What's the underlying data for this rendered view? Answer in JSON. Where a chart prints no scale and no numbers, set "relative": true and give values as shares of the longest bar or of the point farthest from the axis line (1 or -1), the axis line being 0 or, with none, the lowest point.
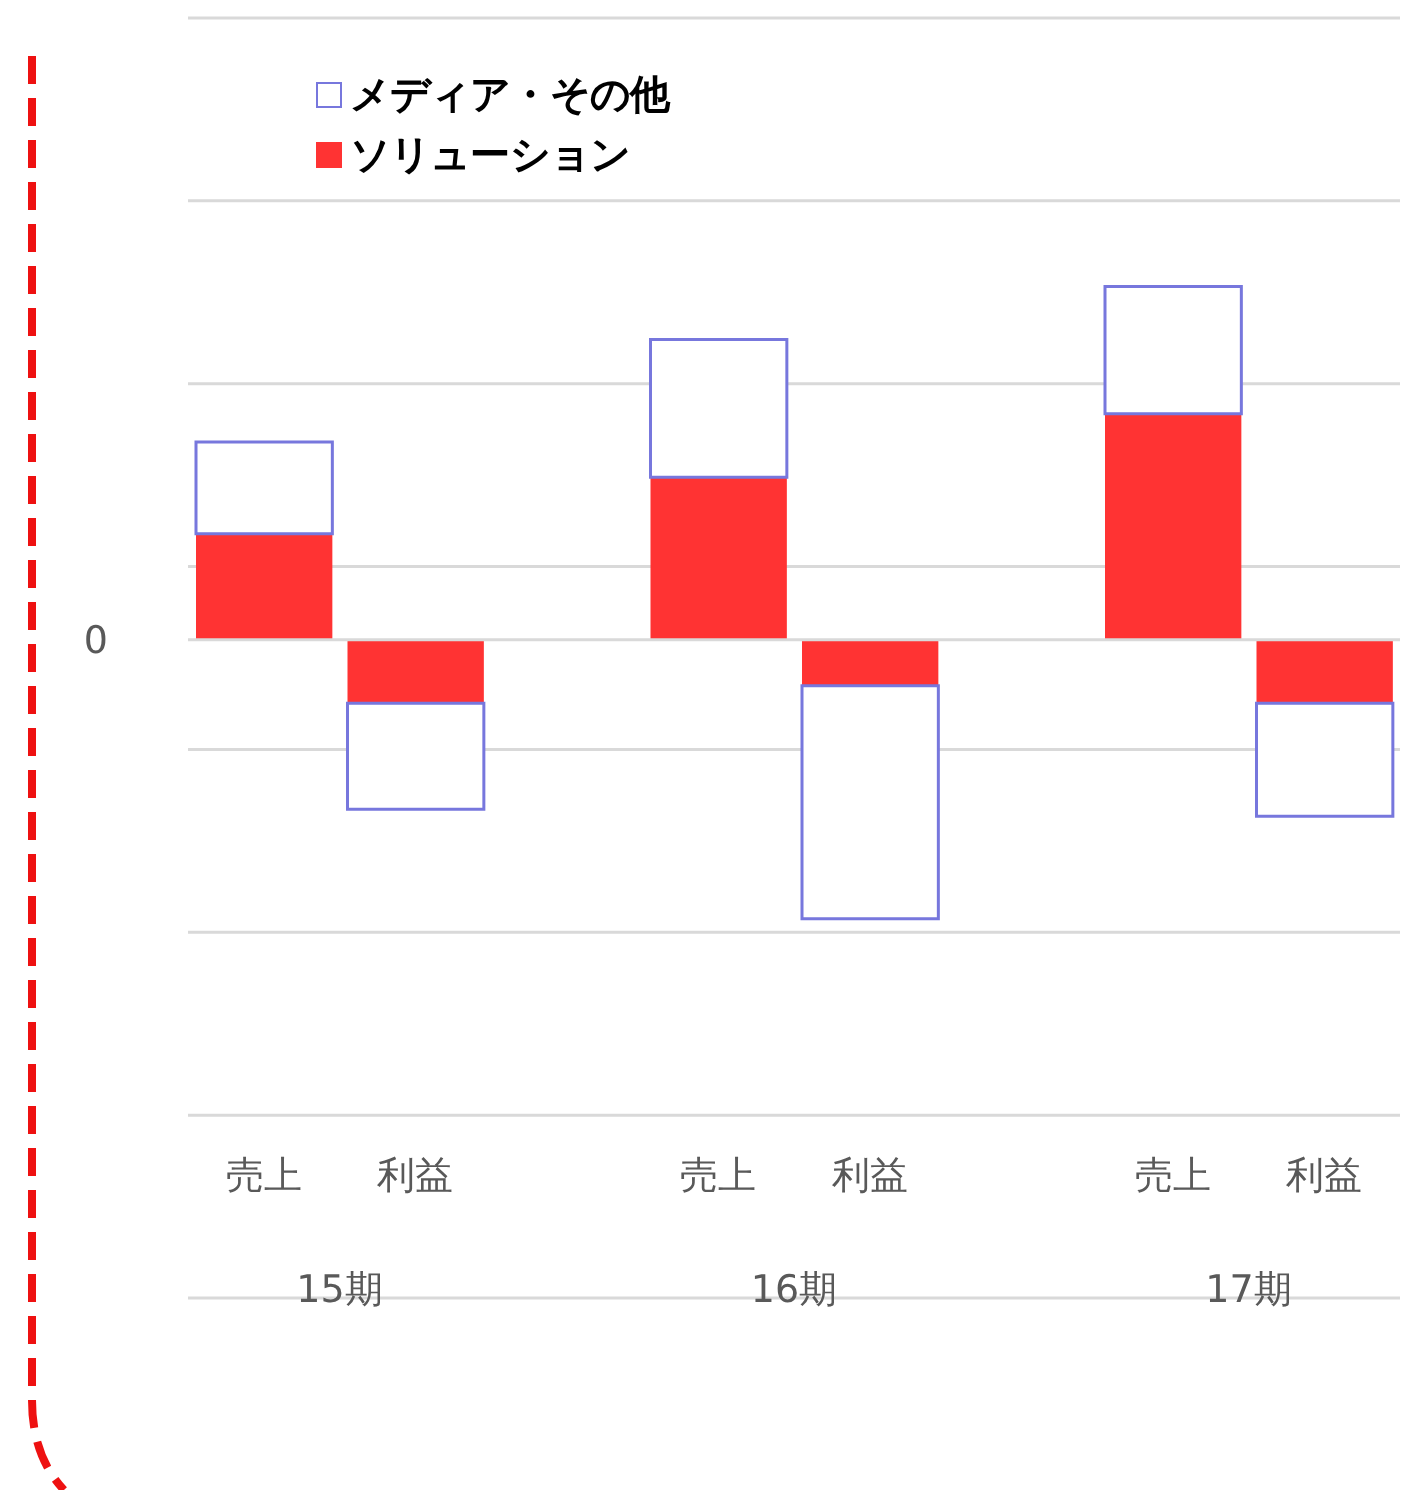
{
  "chart_data": {
    "type": "bar",
    "relative": true,
    "stacked": true,
    "grid": "y",
    "legend": "top left",
    "categories": [
      "売上",
      "利益",
      "売上",
      "利益",
      "売上",
      "利益"
    ],
    "series": [
      {
        "name": "ソリューション",
        "color": "#ff3333",
        "values": [
          0.3,
          -0.18,
          0.46,
          -0.13,
          0.64,
          -0.18
        ]
      },
      {
        "name": "メディア・その他",
        "color": "#7777dd",
        "values": [
          0.26,
          -0.3,
          0.39,
          -0.66,
          0.36,
          -0.32
        ]
      }
    ],
    "annotations": [
      "0",
      "15期",
      "16期",
      "17期"
    ]
  }
}
